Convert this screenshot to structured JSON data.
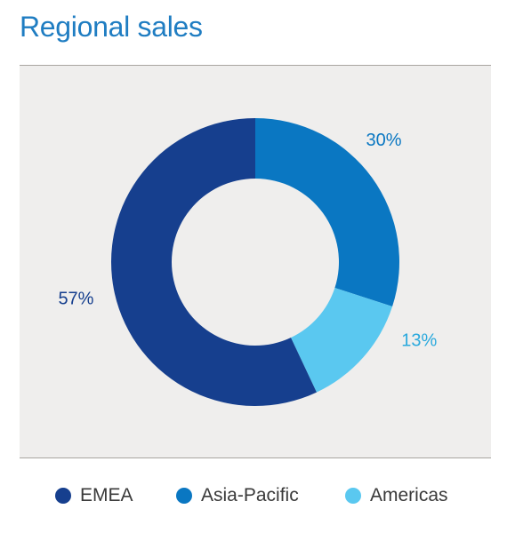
{
  "title": "Regional sales",
  "chart_data": {
    "type": "pie",
    "title": "Regional sales",
    "donut": true,
    "legend_position": "bottom",
    "categories": [
      "EMEA",
      "Asia-Pacific",
      "Americas"
    ],
    "values": [
      57,
      30,
      13
    ],
    "value_labels": [
      "57%",
      "30%",
      "13%"
    ],
    "colors": [
      "#163f8e",
      "#0a77c2",
      "#5ac8f0"
    ],
    "label_colors": [
      "#163f8e",
      "#0a77c2",
      "#2aa9dd"
    ]
  }
}
